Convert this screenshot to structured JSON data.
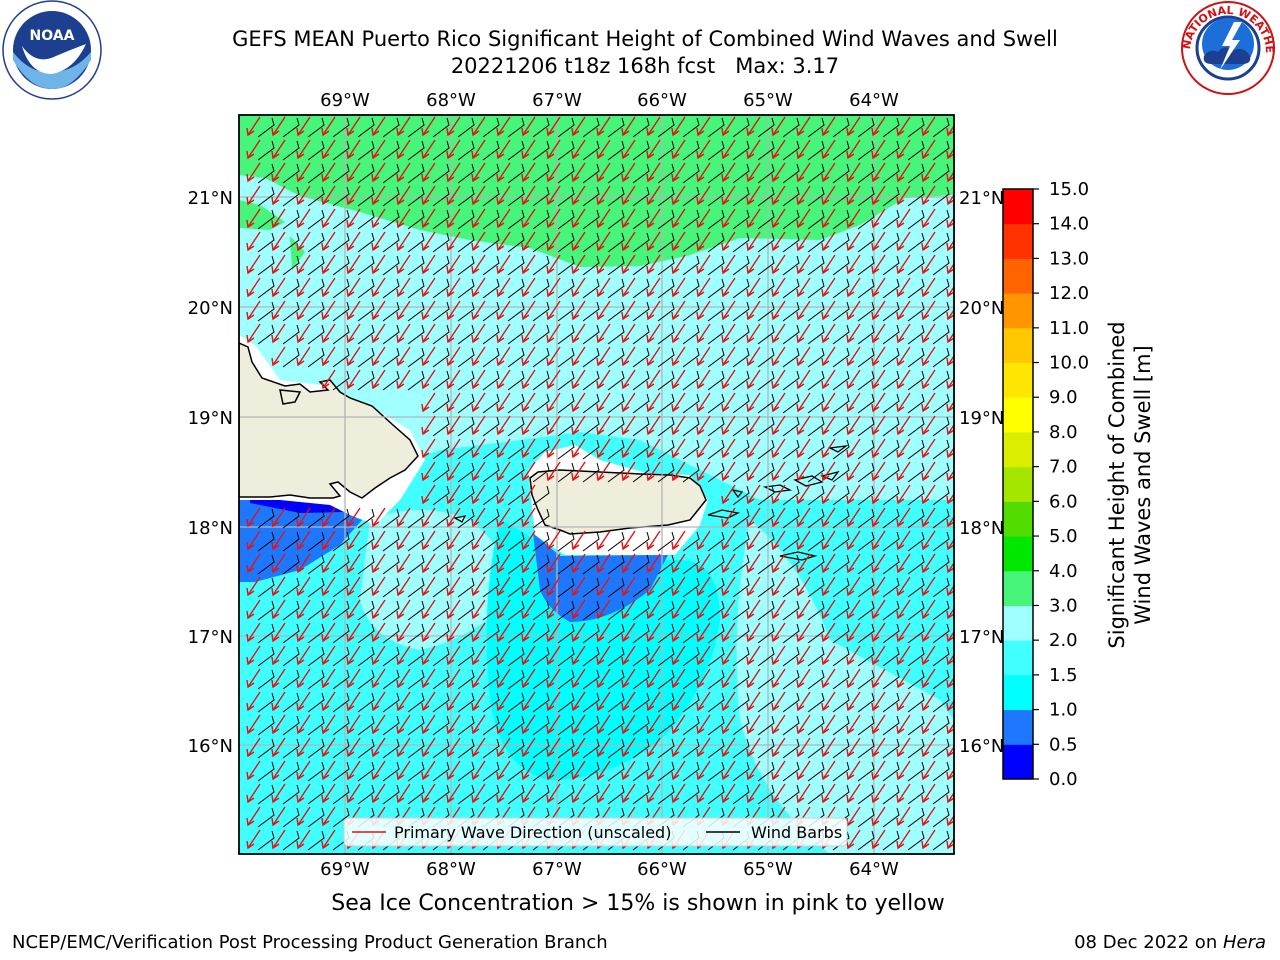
{
  "title": {
    "line1": "GEFS MEAN Puerto Rico Significant Height of Combined Wind Waves and Swell",
    "line2": "20221206 t18z 168h fcst   Max: 3.17"
  },
  "logos": {
    "left": "noaa-logo",
    "right": "nws-logo"
  },
  "map": {
    "lon_ticks": [
      "69°W",
      "68°W",
      "67°W",
      "66°W",
      "65°W",
      "64°W"
    ],
    "lat_ticks": [
      "21°N",
      "20°N",
      "19°N",
      "18°N",
      "17°N",
      "16°N"
    ],
    "legend": {
      "wave_direction": "Primary Wave Direction (unscaled)",
      "wind_barbs": "Wind Barbs"
    }
  },
  "colorbar": {
    "label_line1": "Significant Height of Combined",
    "label_line2": "Wind Waves and Swell [m]",
    "ticks": [
      "0.0",
      "0.5",
      "1.0",
      "1.5",
      "2.0",
      "3.0",
      "4.0",
      "5.0",
      "6.0",
      "7.0",
      "8.0",
      "9.0",
      "10.0",
      "11.0",
      "12.0",
      "13.0",
      "14.0",
      "15.0"
    ],
    "colors": [
      "#0000ff",
      "#1e78ff",
      "#00ffff",
      "#42ffff",
      "#a0ffff",
      "#46f57a",
      "#00e800",
      "#52dc00",
      "#a5e600",
      "#dcee00",
      "#ffff00",
      "#ffe600",
      "#ffc800",
      "#ff9600",
      "#ff6400",
      "#ff3200",
      "#ff0000"
    ]
  },
  "colors": {
    "land": "#efeedc",
    "wave_arrow": "#e11414",
    "grid": "#b4b4b4"
  },
  "subcaption": "Sea Ice Concentration > 15% is shown in pink to yellow",
  "footer": {
    "left": "NCEP/EMC/Verification Post Processing Product Generation Branch",
    "right_date": "08 Dec 2022 on ",
    "right_host": "Hera"
  }
}
